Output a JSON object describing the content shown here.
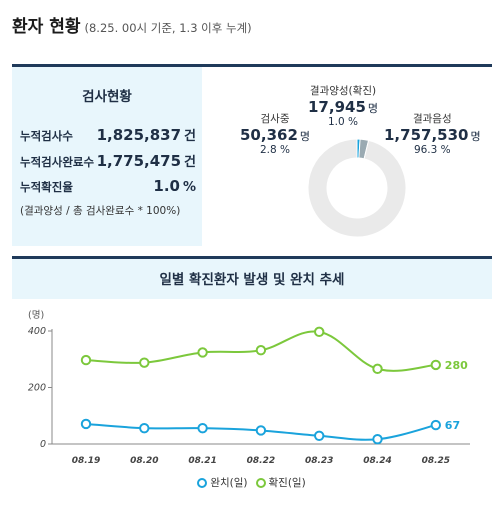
{
  "header": {
    "title": "환자 현황",
    "subtitle": "(8.25. 00시 기준, 1.3 이후 누계)"
  },
  "summary": {
    "title": "검사현황",
    "rows": [
      {
        "label": "누적검사수",
        "value": "1,825,837",
        "unit": "건"
      },
      {
        "label": "누적검사완료수",
        "value": "1,775,475",
        "unit": "건"
      },
      {
        "label": "누적확진율",
        "value": "1.0",
        "unit": "%"
      }
    ],
    "note": "(결과양성 / 총 검사완료수 * 100%)"
  },
  "donut": {
    "segments": [
      {
        "name": "결과양성(확진)",
        "value": "17,945",
        "unit": "명",
        "pct": "1.0 %",
        "share": 1.0,
        "color": "#1aa3dc"
      },
      {
        "name": "검사중",
        "value": "50,362",
        "unit": "명",
        "pct": "2.8 %",
        "share": 2.8,
        "color": "#9aaab2"
      },
      {
        "name": "결과음성",
        "value": "1,757,530",
        "unit": "명",
        "pct": "96.3 %",
        "share": 96.3,
        "color": "#eaeaea"
      }
    ]
  },
  "trend": {
    "title": "일별 확진환자 발생 및 완치 추세"
  },
  "chart_data": {
    "type": "line",
    "title": "일별 확진환자 발생 및 완치 추세",
    "ylabel": "(명)",
    "ylim": [
      0,
      400
    ],
    "yticks": [
      "0",
      "200",
      "400"
    ],
    "categories": [
      "08.19",
      "08.20",
      "08.21",
      "08.22",
      "08.23",
      "08.24",
      "08.25"
    ],
    "series": [
      {
        "name": "완치(일)",
        "color": "#1aa3dc",
        "values": [
          71,
          56,
          56,
          48,
          29,
          17,
          67
        ],
        "end_label": "67"
      },
      {
        "name": "확진(일)",
        "color": "#7cc83c",
        "values": [
          297,
          288,
          324,
          332,
          397,
          266,
          280
        ],
        "end_label": "280"
      }
    ],
    "legend": "bottom-center",
    "grid": false
  }
}
